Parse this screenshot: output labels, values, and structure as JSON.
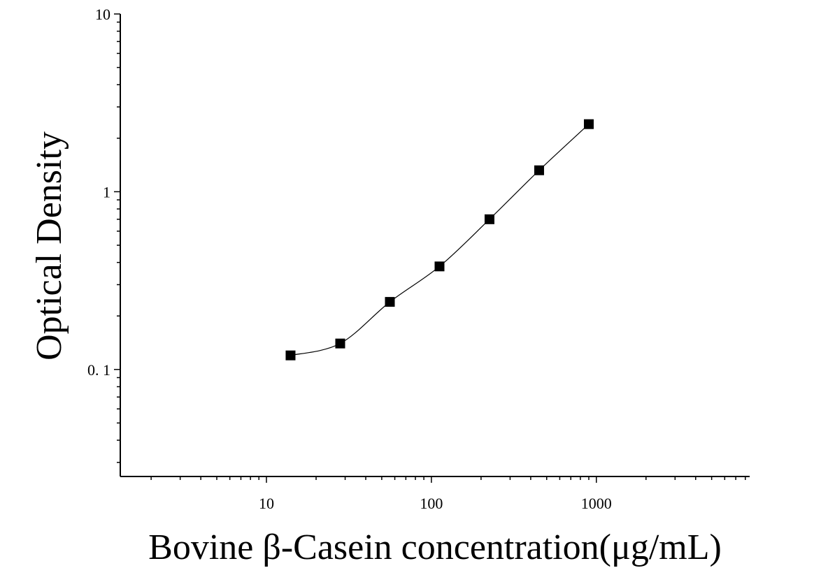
{
  "chart_data": {
    "type": "scatter",
    "title": "",
    "xlabel": "Bovine β-Casein concentration(μg/mL)",
    "ylabel": "Optical Density",
    "x_scale": "log",
    "y_scale": "log",
    "xlim": [
      1.3,
      8500
    ],
    "ylim": [
      0.025,
      10
    ],
    "x_tick_labels": [
      "10",
      "100",
      "1000"
    ],
    "x_tick_values": [
      10,
      100,
      1000
    ],
    "y_tick_labels": [
      "10",
      "1",
      "0. 1"
    ],
    "y_tick_values": [
      10,
      1,
      0.1
    ],
    "grid": false,
    "series": [
      {
        "marker": "square",
        "line": "fitted curve",
        "color": "#000000",
        "x": [
          14,
          28,
          56,
          112,
          225,
          450,
          900
        ],
        "y": [
          0.12,
          0.14,
          0.24,
          0.38,
          0.7,
          1.32,
          2.4
        ]
      }
    ]
  }
}
